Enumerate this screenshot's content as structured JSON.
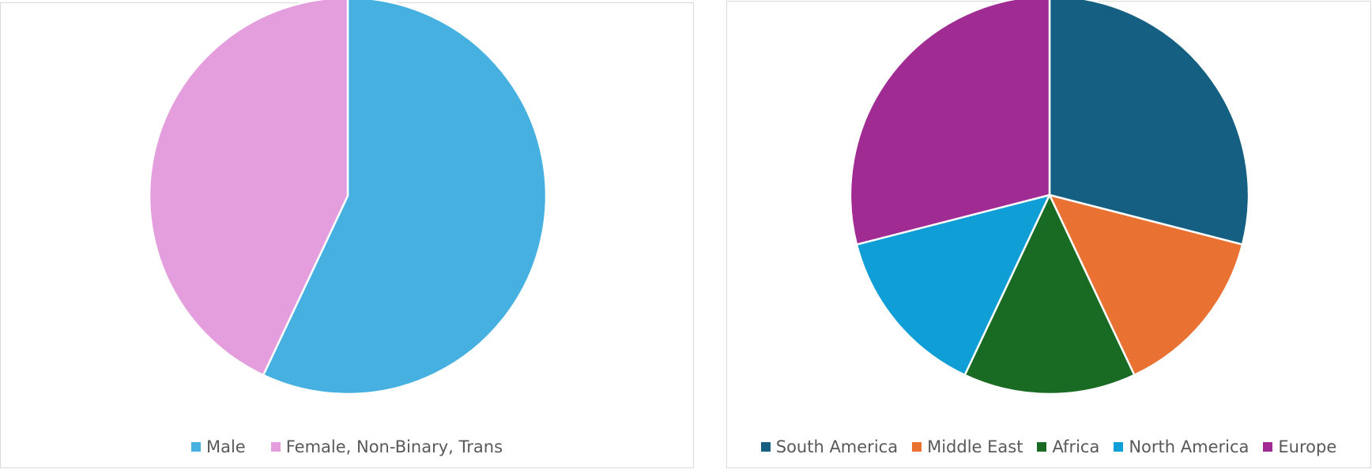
{
  "chart_data": [
    {
      "type": "pie",
      "title": "",
      "categories": [
        "Male",
        "Female, Non-Binary, Trans"
      ],
      "values": [
        57,
        43
      ],
      "colors": [
        "#46B1E1",
        "#E59EDD"
      ],
      "start_angle_deg": 0,
      "direction": "clockwise",
      "legend": "bottom"
    },
    {
      "type": "pie",
      "title": "",
      "categories": [
        "South America",
        "Middle East",
        "Africa",
        "North America",
        "Europe"
      ],
      "values": [
        29,
        14,
        14,
        14,
        29
      ],
      "colors": [
        "#156082",
        "#E97132",
        "#196B24",
        "#0F9ED5",
        "#A02B93"
      ],
      "start_angle_deg": 0,
      "direction": "clockwise",
      "legend": "bottom"
    }
  ]
}
